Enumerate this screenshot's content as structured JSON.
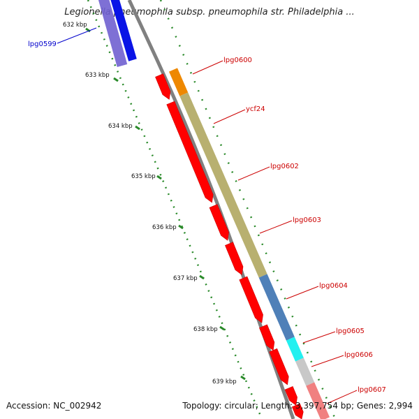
{
  "title": "Legionella pneumophila subsp. pneumophila str. Philadelphia ...",
  "footer": {
    "accession": "Accession: NC_002942",
    "stats": "Topology: circular; Length: 3,397,754 bp; Genes: 2,994"
  },
  "ticks": [
    "632 kbp",
    "633 kbp",
    "634 kbp",
    "635 kbp",
    "636 kbp",
    "637 kbp",
    "638 kbp",
    "639 kbp"
  ],
  "genes": [
    {
      "label": "lpg0599",
      "color": "#0a14e6"
    },
    {
      "label": "lpg0600",
      "color": "#ee8800"
    },
    {
      "label": "ycf24",
      "color": "#b8b070"
    },
    {
      "label": "lpg0602",
      "color": "#b8b070"
    },
    {
      "label": "lpg0603",
      "color": "#b8b070"
    },
    {
      "label": "lpg0604",
      "color": "#4f80b8"
    },
    {
      "label": "lpg0605",
      "color": "#22f0f0"
    },
    {
      "label": "lpg0606",
      "color": "#c8c8c8"
    },
    {
      "label": "lpg0607",
      "color": "#f08080"
    }
  ],
  "colors": {
    "backbone": "#808080",
    "cds": "#ff0000",
    "tick": "#2a8a2a",
    "label_blue": "#0000cc",
    "label_red": "#cc0000"
  }
}
